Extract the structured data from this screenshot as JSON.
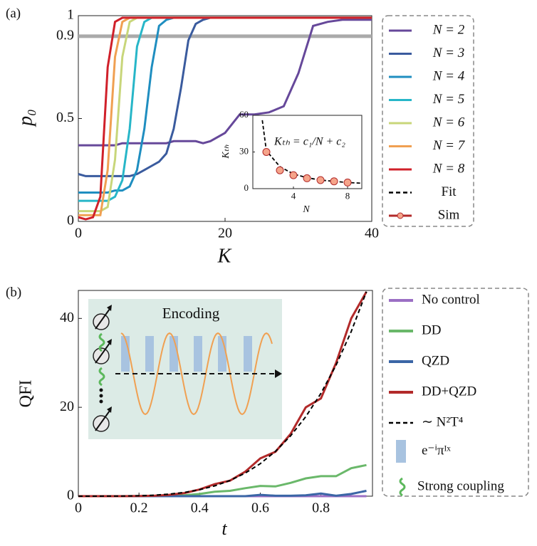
{
  "chart_data": [
    {
      "type": "line",
      "panel_label": "(a)",
      "xlabel": "K",
      "ylabel": "p₀",
      "xlim": [
        0,
        40
      ],
      "ylim": [
        0,
        1
      ],
      "xticks": [
        0,
        20,
        40
      ],
      "yticks": [
        0,
        0.5,
        0.9,
        1
      ],
      "threshold": 0.9,
      "threshold_color": "#aaaaaa",
      "x": [
        0,
        1,
        2,
        3,
        4,
        5,
        6,
        7,
        8,
        9,
        10,
        11,
        12,
        13,
        14,
        15,
        16,
        17,
        18,
        20,
        22,
        24,
        26,
        28,
        30,
        32,
        34,
        36,
        38,
        40
      ],
      "series": [
        {
          "name": "N = 2",
          "color": "#66489a",
          "values": [
            0.37,
            0.37,
            0.37,
            0.37,
            0.37,
            0.37,
            0.38,
            0.38,
            0.38,
            0.38,
            0.38,
            0.38,
            0.38,
            0.39,
            0.39,
            0.39,
            0.39,
            0.38,
            0.39,
            0.43,
            0.52,
            0.52,
            0.53,
            0.56,
            0.72,
            0.95,
            0.97,
            0.98,
            0.98,
            0.98
          ]
        },
        {
          "name": "N = 3",
          "color": "#3a5b9e",
          "values": [
            0.23,
            0.22,
            0.22,
            0.22,
            0.22,
            0.22,
            0.22,
            0.22,
            0.23,
            0.25,
            0.27,
            0.29,
            0.33,
            0.45,
            0.65,
            0.88,
            0.96,
            0.98,
            0.99,
            0.99,
            0.99,
            0.99,
            0.99,
            0.99,
            0.99,
            0.99,
            0.99,
            0.99,
            0.99,
            0.99
          ]
        },
        {
          "name": "N = 4",
          "color": "#1f8ec0",
          "values": [
            0.14,
            0.14,
            0.14,
            0.14,
            0.14,
            0.15,
            0.15,
            0.17,
            0.25,
            0.45,
            0.75,
            0.95,
            0.98,
            0.99,
            0.99,
            0.99,
            0.99,
            0.99,
            0.99,
            0.99,
            0.99,
            0.99,
            0.99,
            0.99,
            0.99,
            0.99,
            0.99,
            0.99,
            0.99,
            0.99
          ]
        },
        {
          "name": "N = 5",
          "color": "#27b6c8",
          "values": [
            0.1,
            0.1,
            0.1,
            0.1,
            0.1,
            0.12,
            0.2,
            0.45,
            0.85,
            0.97,
            0.99,
            0.99,
            0.99,
            0.99,
            0.99,
            0.99,
            0.99,
            0.99,
            0.99,
            0.99,
            0.99,
            0.99,
            0.99,
            0.99,
            0.99,
            0.99,
            0.99,
            0.99,
            0.99,
            0.99
          ]
        },
        {
          "name": "N = 6",
          "color": "#c8d67a",
          "values": [
            0.05,
            0.05,
            0.05,
            0.05,
            0.07,
            0.3,
            0.8,
            0.97,
            0.99,
            0.99,
            0.99,
            0.99,
            0.99,
            0.99,
            0.99,
            0.99,
            0.99,
            0.99,
            0.99,
            0.99,
            0.99,
            0.99,
            0.99,
            0.99,
            0.99,
            0.99,
            0.99,
            0.99,
            0.99,
            0.99
          ]
        },
        {
          "name": "N = 7",
          "color": "#f0a052",
          "values": [
            0.03,
            0.03,
            0.03,
            0.03,
            0.25,
            0.8,
            0.97,
            0.99,
            0.99,
            0.99,
            0.99,
            0.99,
            0.99,
            0.99,
            0.99,
            0.99,
            0.99,
            0.99,
            0.99,
            0.99,
            0.99,
            0.99,
            0.99,
            0.99,
            0.99,
            0.99,
            0.99,
            0.99,
            0.99,
            0.99
          ]
        },
        {
          "name": "N = 8",
          "color": "#d0202a",
          "values": [
            0.02,
            0.01,
            0.02,
            0.12,
            0.75,
            0.97,
            0.99,
            0.99,
            0.99,
            0.99,
            0.99,
            0.99,
            0.99,
            0.99,
            0.99,
            0.99,
            0.99,
            0.99,
            0.99,
            0.99,
            0.99,
            0.99,
            0.99,
            0.99,
            0.99,
            0.99,
            0.99,
            0.99,
            0.99,
            0.99
          ]
        }
      ]
    },
    {
      "type": "scatter",
      "xlabel": "N",
      "ylabel": "Kₜₕ",
      "annotation": "Kₜₕ = c₁/N + c₂",
      "xlim": [
        1,
        9.05
      ],
      "ylim": [
        0,
        60
      ],
      "xticks": [
        4,
        8
      ],
      "yticks": [
        0,
        30,
        60
      ],
      "series": [
        {
          "name": "Fit",
          "color": "#000000",
          "dashed": true,
          "x": [
            1.7,
            2,
            3,
            4,
            5,
            6,
            7,
            8,
            9
          ],
          "values": [
            56,
            31,
            18,
            12,
            9,
            7,
            6,
            5,
            4.5
          ]
        },
        {
          "name": "Sim",
          "color": "#b22a2a",
          "marker_fill": "#f5a48a",
          "x": [
            2,
            3,
            4,
            5,
            6,
            7,
            8
          ],
          "values": [
            30,
            15,
            11,
            8.5,
            7,
            6,
            5
          ]
        }
      ]
    },
    {
      "type": "line",
      "panel_label": "(b)",
      "xlabel": "t",
      "ylabel": "QFI",
      "inset_title": "Encoding",
      "xlim": [
        0,
        0.97
      ],
      "ylim": [
        0,
        46.3
      ],
      "xticks": [
        0,
        0.2,
        0.4,
        0.6,
        0.8
      ],
      "yticks": [
        0,
        20,
        40
      ],
      "x": [
        0,
        0.05,
        0.1,
        0.15,
        0.2,
        0.25,
        0.3,
        0.35,
        0.4,
        0.45,
        0.5,
        0.55,
        0.6,
        0.65,
        0.7,
        0.75,
        0.8,
        0.85,
        0.9,
        0.95
      ],
      "series": [
        {
          "name": "No control",
          "color": "#9b6fc4",
          "values": [
            0,
            0,
            0,
            0,
            0,
            0,
            0,
            0,
            0,
            0,
            0,
            0,
            0,
            0,
            0,
            0,
            0,
            0,
            0,
            0
          ]
        },
        {
          "name": "DD",
          "color": "#6ab86a",
          "values": [
            0,
            0,
            0,
            0,
            0,
            0,
            0.1,
            0.2,
            0.5,
            1,
            1.2,
            1.8,
            2.3,
            2.2,
            3,
            4,
            4.5,
            4.5,
            6.3,
            7
          ]
        },
        {
          "name": "QZD",
          "color": "#3b66a6",
          "values": [
            0,
            0,
            0,
            0,
            0,
            0,
            0,
            0,
            0,
            0,
            0,
            0,
            0.3,
            0.1,
            0.1,
            0.2,
            0.6,
            0.1,
            0.5,
            1.2
          ]
        },
        {
          "name": "DD+QZD",
          "color": "#b22a2a",
          "values": [
            0,
            0,
            0,
            0,
            0.05,
            0.1,
            0.3,
            0.7,
            1.5,
            2.7,
            3.5,
            5.5,
            8.5,
            10,
            14,
            20,
            22,
            30,
            40,
            46
          ]
        },
        {
          "name": "∼ N²T⁴",
          "color": "#000000",
          "dashed": true,
          "values": [
            0,
            0,
            0.01,
            0.03,
            0.09,
            0.22,
            0.46,
            0.85,
            1.45,
            2.32,
            3.53,
            5.17,
            7.32,
            10.09,
            13.57,
            17.88,
            23.14,
            29.5,
            37.07,
            46.02
          ]
        }
      ],
      "legend_extra": [
        "e⁻ⁱπᴵˣ",
        "Strong coupling"
      ]
    }
  ]
}
